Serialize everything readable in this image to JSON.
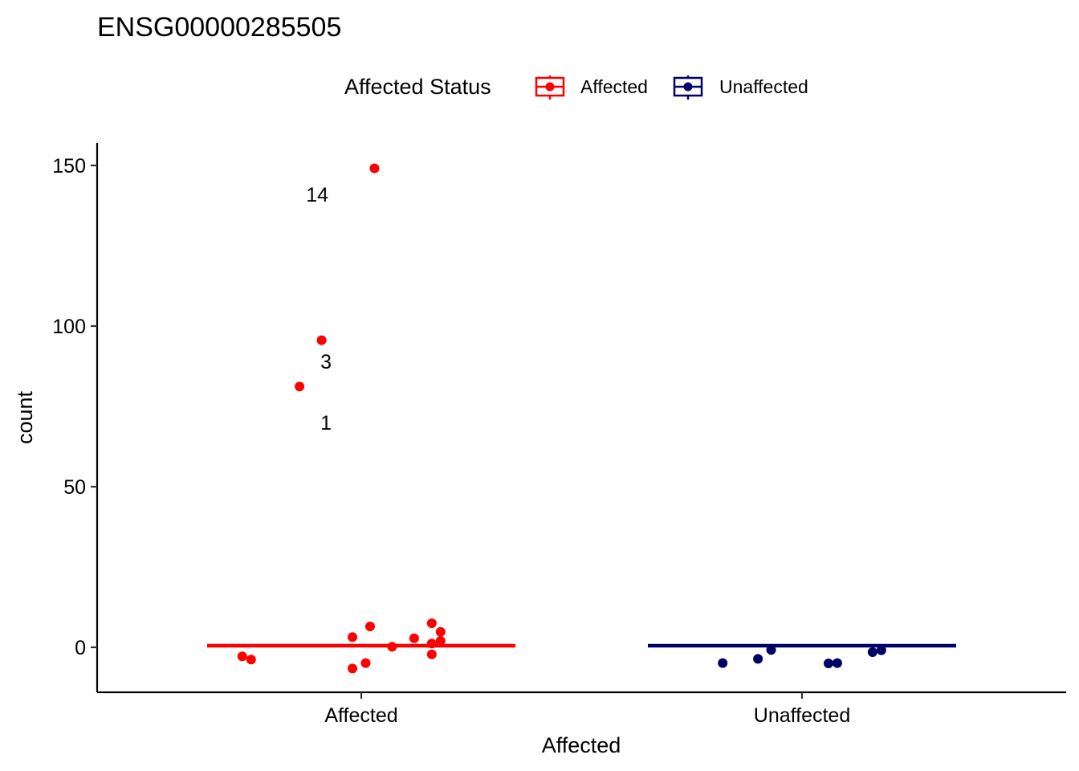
{
  "chart_data": {
    "type": "scatter",
    "title": "ENSG00000285505",
    "xlabel": "Affected",
    "ylabel": "count",
    "categories": [
      "Affected",
      "Unaffected"
    ],
    "yticks": [
      0,
      50,
      100,
      150
    ],
    "ylim": [
      -14,
      157
    ],
    "legend": {
      "title": "Affected Status",
      "position": "top",
      "entries": [
        "Affected",
        "Unaffected"
      ]
    },
    "grid": false,
    "series": [
      {
        "name": "Affected",
        "color": "#ff0000",
        "median": 0.5,
        "points": [
          {
            "x": 0.86,
            "y": 81.2
          },
          {
            "x": 0.91,
            "y": 95.6
          },
          {
            "x": 1.03,
            "y": 149.1
          },
          {
            "x": 0.73,
            "y": -2.8
          },
          {
            "x": 0.75,
            "y": -3.8
          },
          {
            "x": 0.98,
            "y": 3.2
          },
          {
            "x": 1.02,
            "y": 6.5
          },
          {
            "x": 0.98,
            "y": -6.6
          },
          {
            "x": 1.01,
            "y": -4.9
          },
          {
            "x": 1.07,
            "y": 0.2
          },
          {
            "x": 1.12,
            "y": 2.8
          },
          {
            "x": 1.16,
            "y": 7.5
          },
          {
            "x": 1.16,
            "y": 1.2
          },
          {
            "x": 1.16,
            "y": -2.2
          },
          {
            "x": 1.18,
            "y": 2.0
          },
          {
            "x": 1.18,
            "y": 4.8
          }
        ],
        "labels": [
          {
            "x": 0.92,
            "y": 70,
            "text": "1"
          },
          {
            "x": 0.92,
            "y": 89,
            "text": "3"
          },
          {
            "x": 0.9,
            "y": 141,
            "text": "14"
          }
        ]
      },
      {
        "name": "Unaffected",
        "color": "#000066",
        "median": 0.5,
        "points": [
          {
            "x": 1.82,
            "y": -4.9
          },
          {
            "x": 1.9,
            "y": -3.6
          },
          {
            "x": 1.93,
            "y": -0.8
          },
          {
            "x": 2.06,
            "y": -5.0
          },
          {
            "x": 2.08,
            "y": -4.9
          },
          {
            "x": 2.16,
            "y": -1.5
          },
          {
            "x": 2.18,
            "y": -0.9
          }
        ],
        "labels": []
      }
    ]
  }
}
